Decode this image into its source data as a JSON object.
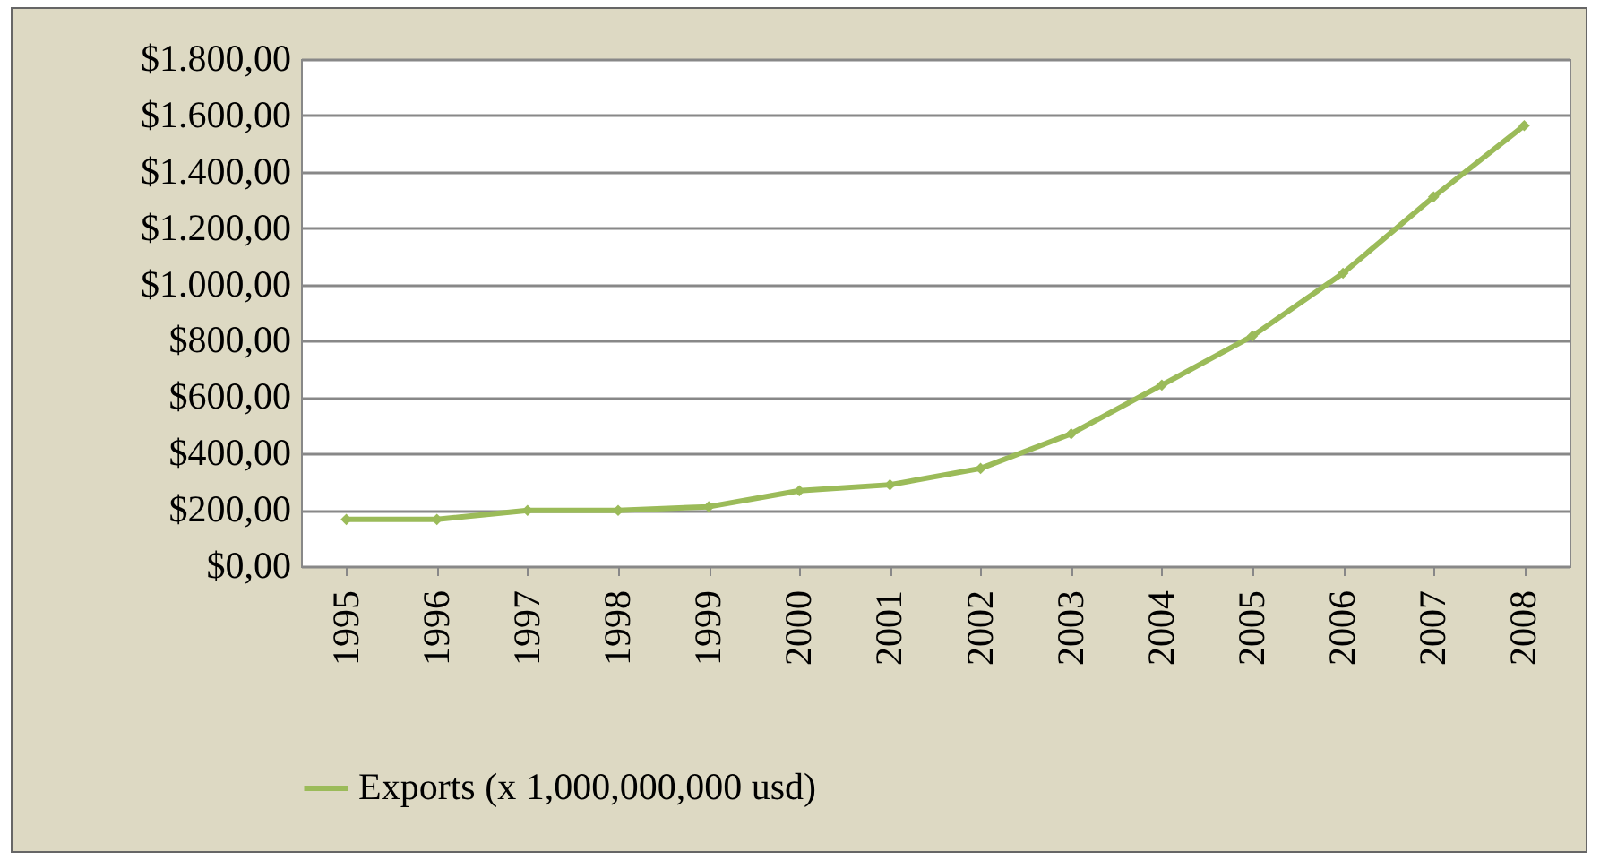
{
  "chart_data": {
    "type": "line",
    "categories": [
      "1995",
      "1996",
      "1997",
      "1998",
      "1999",
      "2000",
      "2001",
      "2002",
      "2003",
      "2004",
      "2005",
      "2006",
      "2007",
      "2008"
    ],
    "series": [
      {
        "name": "Exports (x 1,000,000,000 usd)",
        "color": "#9bbb59",
        "values": [
          166,
          166,
          198,
          198,
          211,
          268,
          289,
          347,
          470,
          643,
          817,
          1040,
          1311,
          1564
        ]
      }
    ],
    "ylim": [
      0,
      1800
    ],
    "yticks": [
      {
        "value": 0,
        "label": "$0,00"
      },
      {
        "value": 200,
        "label": "$200,00"
      },
      {
        "value": 400,
        "label": "$400,00"
      },
      {
        "value": 600,
        "label": "$600,00"
      },
      {
        "value": 800,
        "label": "$800,00"
      },
      {
        "value": 1000,
        "label": "$1.000,00"
      },
      {
        "value": 1200,
        "label": "$1.200,00"
      },
      {
        "value": 1400,
        "label": "$1.400,00"
      },
      {
        "value": 1600,
        "label": "$1.600,00"
      },
      {
        "value": 1800,
        "label": "$1.800,00"
      }
    ],
    "grid": "y",
    "legend": "bottom",
    "marker": "diamond",
    "line_style": "solid"
  }
}
